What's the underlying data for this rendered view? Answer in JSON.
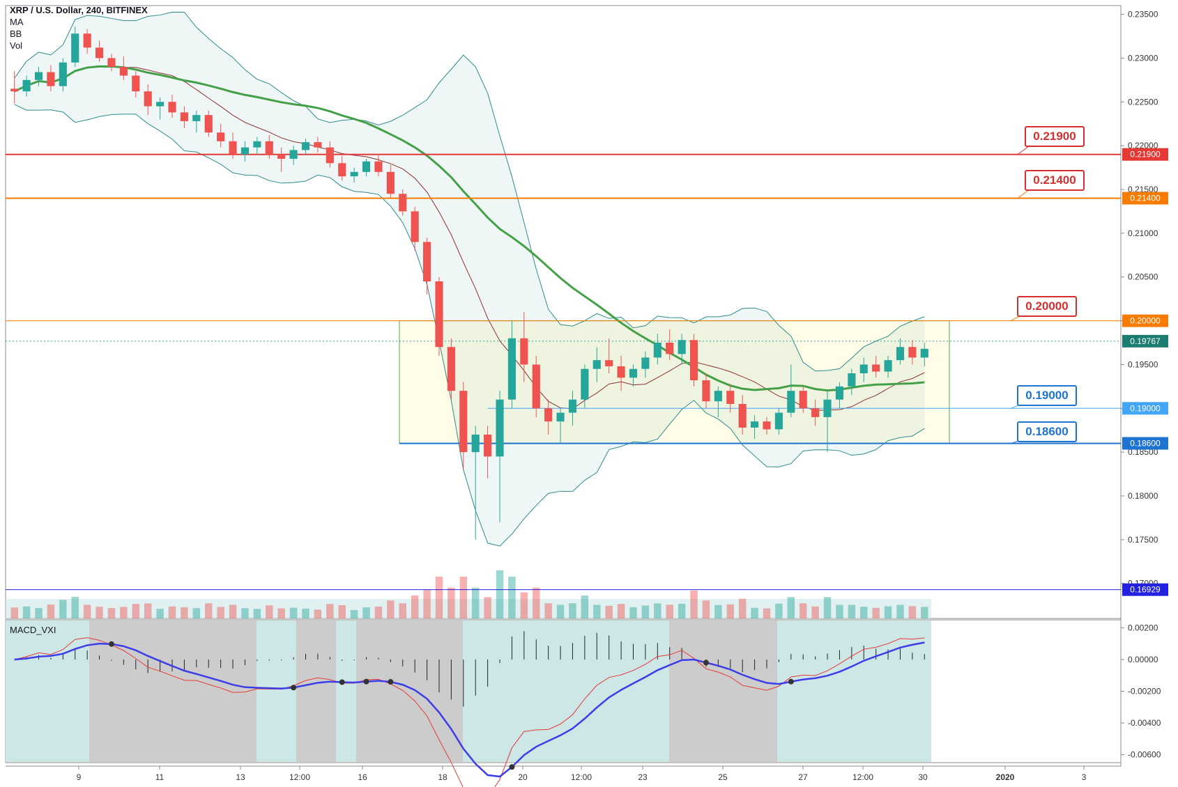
{
  "header": {
    "title": "XRP / U.S. Dollar, 240, BITFINEX",
    "indicators": [
      "MA",
      "BB",
      "Vol"
    ]
  },
  "macd": {
    "label": "MACD_VXI"
  },
  "colors": {
    "up": "#26a69a",
    "down": "#ef5350",
    "ma": "#43a047",
    "bb_basis": "#8d2f2f",
    "bb_band": "#2e8b8b",
    "macd": "#3d3de8",
    "signal": "#e53935"
  },
  "chart_data": {
    "type": "candlestick",
    "symbol": "XRP / U.S. Dollar",
    "interval": "240",
    "exchange": "BITFINEX",
    "price_axis": {
      "range": [
        0.166,
        0.236
      ],
      "ticks": [
        "0.23500",
        "0.23000",
        "0.22500",
        "0.22000",
        "0.21500",
        "0.21000",
        "0.20500",
        "0.20000",
        "0.19500",
        "0.19000",
        "0.18500",
        "0.18000",
        "0.17500",
        "0.17000"
      ]
    },
    "time_axis": {
      "labels": [
        "9",
        "11",
        "13",
        "12:00",
        "16",
        "18",
        "20",
        "12:00",
        "23",
        "25",
        "27",
        "12:00",
        "30",
        "2020",
        "3"
      ]
    },
    "current_price": "0.19767",
    "horizontal_levels": [
      {
        "price": 0.219,
        "label": "0.21900",
        "color": "#e53935",
        "callout": "0.21900"
      },
      {
        "price": 0.214,
        "label": "0.21400",
        "color": "#f57c00",
        "callout": "0.21400"
      },
      {
        "price": 0.2,
        "label": "0.20000",
        "color": "#f57c00",
        "callout": "0.20000"
      },
      {
        "price": 0.19,
        "label": "0.19000",
        "color": "#42a5f5",
        "callout": "0.19000"
      },
      {
        "price": 0.186,
        "label": "0.18600",
        "color": "#1e73d0",
        "callout": "0.18600"
      },
      {
        "price": 0.16929,
        "label": "0.16929",
        "color": "#2222e0"
      }
    ],
    "range_box": {
      "top": 0.2,
      "bottom": 0.186
    },
    "candles_ohlc_approx": [
      [
        0.2265,
        0.2285,
        0.2248,
        0.2262
      ],
      [
        0.2262,
        0.228,
        0.2256,
        0.2275
      ],
      [
        0.2275,
        0.229,
        0.2268,
        0.2284
      ],
      [
        0.2284,
        0.2292,
        0.2262,
        0.2268
      ],
      [
        0.2268,
        0.23,
        0.2262,
        0.2295
      ],
      [
        0.2295,
        0.2336,
        0.229,
        0.2328
      ],
      [
        0.2328,
        0.2333,
        0.2305,
        0.2312
      ],
      [
        0.2312,
        0.232,
        0.2296,
        0.23
      ],
      [
        0.23,
        0.2305,
        0.2285,
        0.229
      ],
      [
        0.229,
        0.2302,
        0.2275,
        0.228
      ],
      [
        0.228,
        0.2285,
        0.2255,
        0.2262
      ],
      [
        0.2262,
        0.227,
        0.2235,
        0.2245
      ],
      [
        0.2245,
        0.2255,
        0.223,
        0.225
      ],
      [
        0.225,
        0.2258,
        0.2232,
        0.2238
      ],
      [
        0.2238,
        0.2245,
        0.222,
        0.2228
      ],
      [
        0.2228,
        0.224,
        0.2215,
        0.2235
      ],
      [
        0.2235,
        0.224,
        0.221,
        0.2215
      ],
      [
        0.2215,
        0.2225,
        0.2198,
        0.2205
      ],
      [
        0.2205,
        0.2215,
        0.2185,
        0.219
      ],
      [
        0.219,
        0.2205,
        0.2182,
        0.2198
      ],
      [
        0.2198,
        0.221,
        0.219,
        0.2205
      ],
      [
        0.2205,
        0.2212,
        0.2185,
        0.219
      ],
      [
        0.219,
        0.2198,
        0.217,
        0.2185
      ],
      [
        0.2185,
        0.22,
        0.2178,
        0.2195
      ],
      [
        0.2195,
        0.2208,
        0.219,
        0.2204
      ],
      [
        0.2204,
        0.221,
        0.2192,
        0.2198
      ],
      [
        0.2198,
        0.2205,
        0.2175,
        0.218
      ],
      [
        0.218,
        0.2188,
        0.216,
        0.2165
      ],
      [
        0.2165,
        0.2175,
        0.2158,
        0.217
      ],
      [
        0.217,
        0.2185,
        0.2165,
        0.2182
      ],
      [
        0.2182,
        0.219,
        0.2165,
        0.217
      ],
      [
        0.217,
        0.2178,
        0.214,
        0.2145
      ],
      [
        0.2145,
        0.215,
        0.212,
        0.2125
      ],
      [
        0.2125,
        0.213,
        0.208,
        0.209
      ],
      [
        0.209,
        0.2095,
        0.203,
        0.2045
      ],
      [
        0.2045,
        0.205,
        0.196,
        0.197
      ],
      [
        0.197,
        0.198,
        0.191,
        0.192
      ],
      [
        0.192,
        0.193,
        0.183,
        0.185
      ],
      [
        0.185,
        0.188,
        0.175,
        0.187
      ],
      [
        0.187,
        0.188,
        0.182,
        0.1845
      ],
      [
        0.1845,
        0.192,
        0.177,
        0.191
      ],
      [
        0.191,
        0.2,
        0.19,
        0.198
      ],
      [
        0.198,
        0.201,
        0.193,
        0.195
      ],
      [
        0.195,
        0.196,
        0.189,
        0.19
      ],
      [
        0.19,
        0.191,
        0.187,
        0.1885
      ],
      [
        0.1885,
        0.19,
        0.186,
        0.1895
      ],
      [
        0.1895,
        0.192,
        0.188,
        0.191
      ],
      [
        0.191,
        0.195,
        0.19,
        0.1945
      ],
      [
        0.1945,
        0.197,
        0.193,
        0.1955
      ],
      [
        0.1955,
        0.198,
        0.194,
        0.1948
      ],
      [
        0.1948,
        0.196,
        0.192,
        0.1935
      ],
      [
        0.1935,
        0.195,
        0.1925,
        0.1945
      ],
      [
        0.1945,
        0.1965,
        0.1935,
        0.1958
      ],
      [
        0.1958,
        0.1985,
        0.195,
        0.1975
      ],
      [
        0.1975,
        0.199,
        0.1955,
        0.1962
      ],
      [
        0.1962,
        0.1985,
        0.195,
        0.1978
      ],
      [
        0.1978,
        0.1985,
        0.1925,
        0.1932
      ],
      [
        0.1932,
        0.194,
        0.19,
        0.1908
      ],
      [
        0.1908,
        0.1925,
        0.189,
        0.192
      ],
      [
        0.192,
        0.1928,
        0.1895,
        0.1905
      ],
      [
        0.1905,
        0.1915,
        0.187,
        0.1878
      ],
      [
        0.1878,
        0.1892,
        0.1865,
        0.1885
      ],
      [
        0.1885,
        0.189,
        0.187,
        0.1876
      ],
      [
        0.1876,
        0.19,
        0.187,
        0.1895
      ],
      [
        0.1895,
        0.195,
        0.189,
        0.192
      ],
      [
        0.192,
        0.1925,
        0.1895,
        0.19
      ],
      [
        0.19,
        0.191,
        0.188,
        0.189
      ],
      [
        0.189,
        0.192,
        0.185,
        0.191
      ],
      [
        0.191,
        0.193,
        0.19,
        0.1925
      ],
      [
        0.1925,
        0.1945,
        0.1915,
        0.194
      ],
      [
        0.194,
        0.1958,
        0.193,
        0.195
      ],
      [
        0.195,
        0.196,
        0.1935,
        0.1942
      ],
      [
        0.1942,
        0.196,
        0.1935,
        0.1955
      ],
      [
        0.1955,
        0.198,
        0.195,
        0.197
      ],
      [
        0.197,
        0.1978,
        0.195,
        0.1958
      ],
      [
        0.1958,
        0.1975,
        0.1948,
        0.1968
      ]
    ],
    "volume_shown": true,
    "macd_axis": {
      "range": [
        -0.0065,
        0.0025
      ],
      "ticks": [
        "0.00200",
        "0.00000",
        "-0.00200",
        "-0.00400",
        "-0.00600"
      ]
    }
  }
}
